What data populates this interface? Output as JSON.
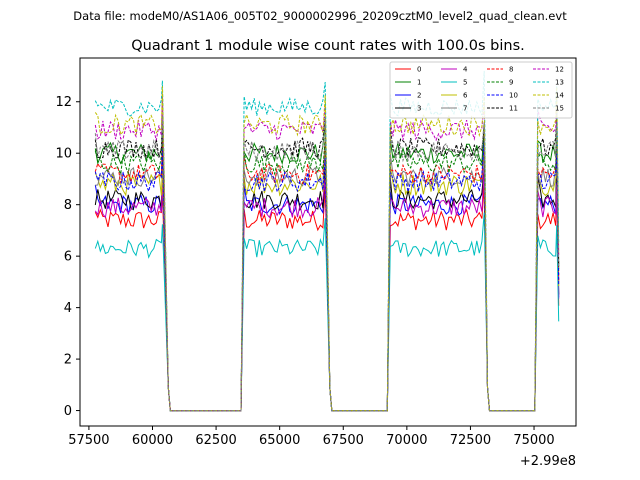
{
  "chart_data": {
    "type": "line",
    "suptitle": "Data file: modeM0/AS1A06_005T02_9000002996_20209cztM0_level2_quad_clean.evt",
    "title": "Quadrant 1 module wise count rates with 100.0s bins.",
    "xlabel": "",
    "ylabel": "",
    "x_offset_label": "+2.99e8",
    "xlim": [
      57150,
      76650
    ],
    "ylim": [
      -0.6,
      13.7
    ],
    "xticks": [
      57500,
      60000,
      62500,
      65000,
      67500,
      70000,
      72500,
      75000
    ],
    "xtick_labels": [
      "57500",
      "60000",
      "62500",
      "65000",
      "67500",
      "70000",
      "72500",
      "75000"
    ],
    "yticks": [
      0,
      2,
      4,
      6,
      8,
      10,
      12
    ],
    "ytick_labels": [
      "0",
      "2",
      "4",
      "6",
      "8",
      "10",
      "12"
    ],
    "legend_position": "top-right",
    "segments": [
      [
        57750,
        60350
      ],
      [
        63600,
        66750
      ],
      [
        69350,
        73000
      ],
      [
        75150,
        75850
      ]
    ],
    "gaps": [
      [
        60700,
        63400
      ],
      [
        67050,
        69150
      ],
      [
        73250,
        74950
      ]
    ],
    "series": [
      {
        "name": "0",
        "color": "#ff0000",
        "dash": "solid",
        "level": 7.4,
        "amp": 0.4
      },
      {
        "name": "1",
        "color": "#008000",
        "dash": "solid",
        "level": 10.0,
        "amp": 0.4
      },
      {
        "name": "2",
        "color": "#0000ff",
        "dash": "solid",
        "level": 8.0,
        "amp": 0.4
      },
      {
        "name": "3",
        "color": "#000000",
        "dash": "solid",
        "level": 8.2,
        "amp": 0.4
      },
      {
        "name": "4",
        "color": "#bf00bf",
        "dash": "solid",
        "level": 7.9,
        "amp": 0.4
      },
      {
        "name": "5",
        "color": "#00bfbf",
        "dash": "solid",
        "level": 6.3,
        "amp": 0.35
      },
      {
        "name": "6",
        "color": "#bfbf00",
        "dash": "solid",
        "level": 8.8,
        "amp": 0.45
      },
      {
        "name": "7",
        "color": "#808080",
        "dash": "solid",
        "level": 9.1,
        "amp": 0.4
      },
      {
        "name": "8",
        "color": "#ff0000",
        "dash": "dashed",
        "level": 9.2,
        "amp": 0.4
      },
      {
        "name": "9",
        "color": "#008000",
        "dash": "dashed",
        "level": 9.6,
        "amp": 0.4
      },
      {
        "name": "10",
        "color": "#0000ff",
        "dash": "dashed",
        "level": 8.9,
        "amp": 0.4
      },
      {
        "name": "11",
        "color": "#000000",
        "dash": "dashed",
        "level": 10.2,
        "amp": 0.4
      },
      {
        "name": "12",
        "color": "#bf00bf",
        "dash": "dashed",
        "level": 10.9,
        "amp": 0.4
      },
      {
        "name": "13",
        "color": "#00bfbf",
        "dash": "dashed",
        "level": 11.8,
        "amp": 0.35
      },
      {
        "name": "14",
        "color": "#bfbf00",
        "dash": "dashed",
        "level": 11.1,
        "amp": 0.4
      },
      {
        "name": "15",
        "color": "#808080",
        "dash": "dashed",
        "level": 10.1,
        "amp": 0.4
      }
    ]
  }
}
